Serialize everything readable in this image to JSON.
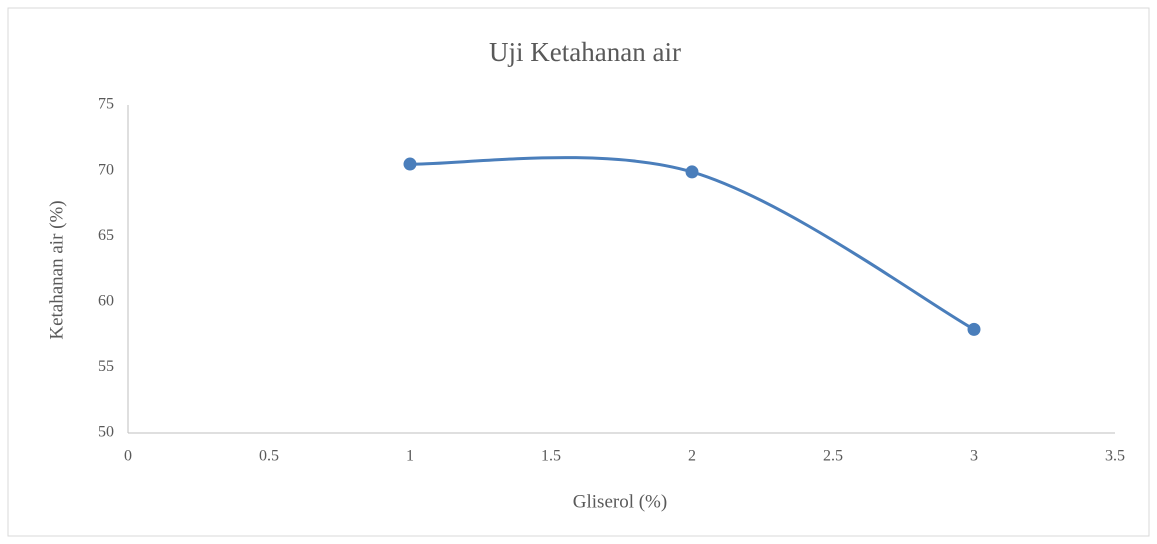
{
  "chart_data": {
    "type": "line",
    "title": "Uji Ketahanan air",
    "x_label": "Gliserol (%)",
    "y_label": "Ketahanan air (%)",
    "x": [
      1,
      2,
      3
    ],
    "series": [
      {
        "name": "Ketahanan air",
        "color": "#4a7ebb",
        "values": [
          70.5,
          69.9,
          57.9
        ]
      }
    ],
    "smooth": true,
    "markers": true,
    "xlim": [
      0,
      3.5
    ],
    "xticks": [
      0,
      0.5,
      1,
      1.5,
      2,
      2.5,
      3,
      3.5
    ],
    "ylim": [
      50,
      75
    ],
    "yticks": [
      50,
      55,
      60,
      65,
      70,
      75
    ],
    "grid": false
  }
}
